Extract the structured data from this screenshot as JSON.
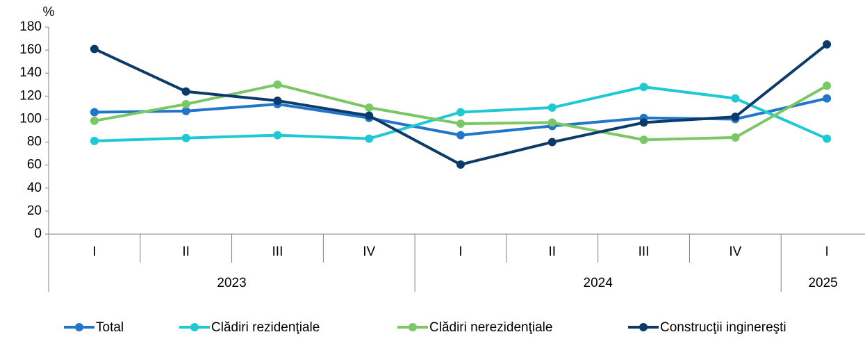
{
  "chart_data": {
    "type": "line",
    "y_label": "%",
    "groups": [
      {
        "label": "2023",
        "categories": [
          "I",
          "II",
          "III",
          "IV"
        ]
      },
      {
        "label": "2024",
        "categories": [
          "I",
          "II",
          "III",
          "IV"
        ]
      },
      {
        "label": "2025",
        "categories": [
          "I"
        ]
      }
    ],
    "series": [
      {
        "name": "Total",
        "color": "#2176c9",
        "values": [
          106,
          107,
          113,
          101,
          86,
          94,
          101,
          100,
          118
        ]
      },
      {
        "name": "Clădiri rezidenţiale",
        "color": "#1ec9d4",
        "values": [
          81,
          83.5,
          86,
          83,
          106,
          110,
          128,
          118,
          83
        ]
      },
      {
        "name": "Clădiri nerezidenţiale",
        "color": "#7ac766",
        "values": [
          98.5,
          113,
          130,
          110,
          96,
          97,
          82,
          84,
          129
        ]
      },
      {
        "name": "Construcţii inginereşti",
        "color": "#0c3b69",
        "values": [
          161,
          124,
          116,
          103,
          60.5,
          80,
          97,
          102,
          165
        ]
      }
    ],
    "ylim": [
      0,
      180
    ],
    "yticks": [
      0,
      20,
      40,
      60,
      80,
      100,
      120,
      140,
      160,
      180
    ],
    "grid": false,
    "legend": "bottom"
  }
}
